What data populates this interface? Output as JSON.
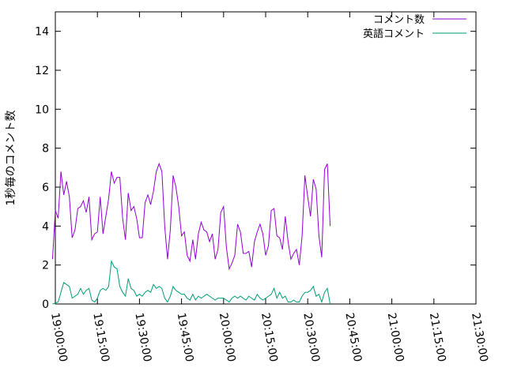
{
  "chart_data": {
    "type": "line",
    "title": "",
    "xlabel": "",
    "ylabel": "1秒毎のコメント数",
    "x_ticks": [
      "19:00:00",
      "19:15:00",
      "19:30:00",
      "19:45:00",
      "20:00:00",
      "20:15:00",
      "20:30:00",
      "20:45:00",
      "21:00:00",
      "21:15:00",
      "21:30:00"
    ],
    "y_ticks": [
      "0",
      "2",
      "4",
      "6",
      "8",
      "10",
      "12",
      "14"
    ],
    "xlim": [
      "19:00:00",
      "21:30:00"
    ],
    "ylim": [
      0,
      15
    ],
    "grid": false,
    "legend_position": "top-right",
    "series": [
      {
        "name": "コメント数",
        "color": "#9400d3",
        "points": [
          [
            "18:59:00",
            2.3
          ],
          [
            "19:00:00",
            4.8
          ],
          [
            "19:01:00",
            4.4
          ],
          [
            "19:02:00",
            6.8
          ],
          [
            "19:03:00",
            5.6
          ],
          [
            "19:04:00",
            6.3
          ],
          [
            "19:05:00",
            5.5
          ],
          [
            "19:06:00",
            3.4
          ],
          [
            "19:07:00",
            3.8
          ],
          [
            "19:08:00",
            4.9
          ],
          [
            "19:09:00",
            5.0
          ],
          [
            "19:10:00",
            5.3
          ],
          [
            "19:11:00",
            4.7
          ],
          [
            "19:12:00",
            5.5
          ],
          [
            "19:13:00",
            3.3
          ],
          [
            "19:14:00",
            3.6
          ],
          [
            "19:15:00",
            3.7
          ],
          [
            "19:16:00",
            5.5
          ],
          [
            "19:17:00",
            3.6
          ],
          [
            "19:18:00",
            4.5
          ],
          [
            "19:19:00",
            5.4
          ],
          [
            "19:20:00",
            6.8
          ],
          [
            "19:21:00",
            6.2
          ],
          [
            "19:22:00",
            6.5
          ],
          [
            "19:23:00",
            6.5
          ],
          [
            "19:24:00",
            4.4
          ],
          [
            "19:25:00",
            3.3
          ],
          [
            "19:26:00",
            5.7
          ],
          [
            "19:27:00",
            4.8
          ],
          [
            "19:28:00",
            5.0
          ],
          [
            "19:29:00",
            4.4
          ],
          [
            "19:30:00",
            3.4
          ],
          [
            "19:31:00",
            3.4
          ],
          [
            "19:32:00",
            5.2
          ],
          [
            "19:33:00",
            5.6
          ],
          [
            "19:34:00",
            5.1
          ],
          [
            "19:35:00",
            5.8
          ],
          [
            "19:36:00",
            6.8
          ],
          [
            "19:37:00",
            7.2
          ],
          [
            "19:38:00",
            6.8
          ],
          [
            "19:39:00",
            4.0
          ],
          [
            "19:40:00",
            2.3
          ],
          [
            "19:41:00",
            3.8
          ],
          [
            "19:42:00",
            6.6
          ],
          [
            "19:43:00",
            6.0
          ],
          [
            "19:44:00",
            5.0
          ],
          [
            "19:45:00",
            3.5
          ],
          [
            "19:46:00",
            3.7
          ],
          [
            "19:47:00",
            2.5
          ],
          [
            "19:48:00",
            2.2
          ],
          [
            "19:49:00",
            3.3
          ],
          [
            "19:50:00",
            2.3
          ],
          [
            "19:51:00",
            3.6
          ],
          [
            "19:52:00",
            4.2
          ],
          [
            "19:53:00",
            3.8
          ],
          [
            "19:54:00",
            3.7
          ],
          [
            "19:55:00",
            3.2
          ],
          [
            "19:56:00",
            3.6
          ],
          [
            "19:57:00",
            2.3
          ],
          [
            "19:58:00",
            2.8
          ],
          [
            "19:59:00",
            4.7
          ],
          [
            "20:00:00",
            5.0
          ],
          [
            "20:01:00",
            2.9
          ],
          [
            "20:02:00",
            1.8
          ],
          [
            "20:03:00",
            2.1
          ],
          [
            "20:04:00",
            2.5
          ],
          [
            "20:05:00",
            4.1
          ],
          [
            "20:06:00",
            3.7
          ],
          [
            "20:07:00",
            2.6
          ],
          [
            "20:08:00",
            2.6
          ],
          [
            "20:09:00",
            2.7
          ],
          [
            "20:10:00",
            1.9
          ],
          [
            "20:11:00",
            3.2
          ],
          [
            "20:12:00",
            3.7
          ],
          [
            "20:13:00",
            4.1
          ],
          [
            "20:14:00",
            3.6
          ],
          [
            "20:15:00",
            2.5
          ],
          [
            "20:16:00",
            3.0
          ],
          [
            "20:17:00",
            4.8
          ],
          [
            "20:18:00",
            4.9
          ],
          [
            "20:19:00",
            3.5
          ],
          [
            "20:20:00",
            3.4
          ],
          [
            "20:21:00",
            2.8
          ],
          [
            "20:22:00",
            4.5
          ],
          [
            "20:23:00",
            3.2
          ],
          [
            "20:24:00",
            2.3
          ],
          [
            "20:25:00",
            2.6
          ],
          [
            "20:26:00",
            2.8
          ],
          [
            "20:27:00",
            2.0
          ],
          [
            "20:28:00",
            3.5
          ],
          [
            "20:29:00",
            6.6
          ],
          [
            "20:30:00",
            5.5
          ],
          [
            "20:31:00",
            4.5
          ],
          [
            "20:32:00",
            6.4
          ],
          [
            "20:33:00",
            5.9
          ],
          [
            "20:34:00",
            3.5
          ],
          [
            "20:35:00",
            2.4
          ],
          [
            "20:36:00",
            6.9
          ],
          [
            "20:37:00",
            7.2
          ],
          [
            "20:38:00",
            4.0
          ]
        ]
      },
      {
        "name": "英語コメント",
        "color": "#009e73",
        "points": [
          [
            "18:59:00",
            0.0
          ],
          [
            "19:00:00",
            0.05
          ],
          [
            "19:01:00",
            0.1
          ],
          [
            "19:02:00",
            0.6
          ],
          [
            "19:03:00",
            1.1
          ],
          [
            "19:04:00",
            1.0
          ],
          [
            "19:05:00",
            0.9
          ],
          [
            "19:06:00",
            0.3
          ],
          [
            "19:07:00",
            0.4
          ],
          [
            "19:08:00",
            0.5
          ],
          [
            "19:09:00",
            0.8
          ],
          [
            "19:10:00",
            0.5
          ],
          [
            "19:11:00",
            0.7
          ],
          [
            "19:12:00",
            0.8
          ],
          [
            "19:13:00",
            0.2
          ],
          [
            "19:14:00",
            0.1
          ],
          [
            "19:15:00",
            0.3
          ],
          [
            "19:16:00",
            0.7
          ],
          [
            "19:17:00",
            0.8
          ],
          [
            "19:18:00",
            0.7
          ],
          [
            "19:19:00",
            0.9
          ],
          [
            "19:20:00",
            2.2
          ],
          [
            "19:21:00",
            1.9
          ],
          [
            "19:22:00",
            1.8
          ],
          [
            "19:23:00",
            0.9
          ],
          [
            "19:24:00",
            0.6
          ],
          [
            "19:25:00",
            0.4
          ],
          [
            "19:26:00",
            1.3
          ],
          [
            "19:27:00",
            0.8
          ],
          [
            "19:28:00",
            0.7
          ],
          [
            "19:29:00",
            0.4
          ],
          [
            "19:30:00",
            0.5
          ],
          [
            "19:31:00",
            0.4
          ],
          [
            "19:32:00",
            0.6
          ],
          [
            "19:33:00",
            0.7
          ],
          [
            "19:34:00",
            0.6
          ],
          [
            "19:35:00",
            1.0
          ],
          [
            "19:36:00",
            0.8
          ],
          [
            "19:37:00",
            0.9
          ],
          [
            "19:38:00",
            0.8
          ],
          [
            "19:39:00",
            0.3
          ],
          [
            "19:40:00",
            0.1
          ],
          [
            "19:41:00",
            0.4
          ],
          [
            "19:42:00",
            0.9
          ],
          [
            "19:43:00",
            0.7
          ],
          [
            "19:44:00",
            0.6
          ],
          [
            "19:45:00",
            0.5
          ],
          [
            "19:46:00",
            0.5
          ],
          [
            "19:47:00",
            0.3
          ],
          [
            "19:48:00",
            0.2
          ],
          [
            "19:49:00",
            0.5
          ],
          [
            "19:50:00",
            0.2
          ],
          [
            "19:51:00",
            0.4
          ],
          [
            "19:52:00",
            0.3
          ],
          [
            "19:53:00",
            0.4
          ],
          [
            "19:54:00",
            0.5
          ],
          [
            "19:55:00",
            0.4
          ],
          [
            "19:56:00",
            0.3
          ],
          [
            "19:57:00",
            0.2
          ],
          [
            "19:58:00",
            0.3
          ],
          [
            "19:59:00",
            0.3
          ],
          [
            "20:00:00",
            0.3
          ],
          [
            "20:01:00",
            0.2
          ],
          [
            "20:02:00",
            0.1
          ],
          [
            "20:03:00",
            0.3
          ],
          [
            "20:04:00",
            0.4
          ],
          [
            "20:05:00",
            0.3
          ],
          [
            "20:06:00",
            0.4
          ],
          [
            "20:07:00",
            0.3
          ],
          [
            "20:08:00",
            0.2
          ],
          [
            "20:09:00",
            0.4
          ],
          [
            "20:10:00",
            0.3
          ],
          [
            "20:11:00",
            0.2
          ],
          [
            "20:12:00",
            0.5
          ],
          [
            "20:13:00",
            0.3
          ],
          [
            "20:14:00",
            0.2
          ],
          [
            "20:15:00",
            0.3
          ],
          [
            "20:16:00",
            0.4
          ],
          [
            "20:17:00",
            0.5
          ],
          [
            "20:18:00",
            0.8
          ],
          [
            "20:19:00",
            0.3
          ],
          [
            "20:20:00",
            0.6
          ],
          [
            "20:21:00",
            0.3
          ],
          [
            "20:22:00",
            0.4
          ],
          [
            "20:23:00",
            0.1
          ],
          [
            "20:24:00",
            0.1
          ],
          [
            "20:25:00",
            0.2
          ],
          [
            "20:26:00",
            0.1
          ],
          [
            "20:27:00",
            0.1
          ],
          [
            "20:28:00",
            0.4
          ],
          [
            "20:29:00",
            0.6
          ],
          [
            "20:30:00",
            0.6
          ],
          [
            "20:31:00",
            0.7
          ],
          [
            "20:32:00",
            0.9
          ],
          [
            "20:33:00",
            0.4
          ],
          [
            "20:34:00",
            0.5
          ],
          [
            "20:35:00",
            0.1
          ],
          [
            "20:36:00",
            0.6
          ],
          [
            "20:37:00",
            0.8
          ],
          [
            "20:38:00",
            0.0
          ]
        ]
      }
    ]
  }
}
